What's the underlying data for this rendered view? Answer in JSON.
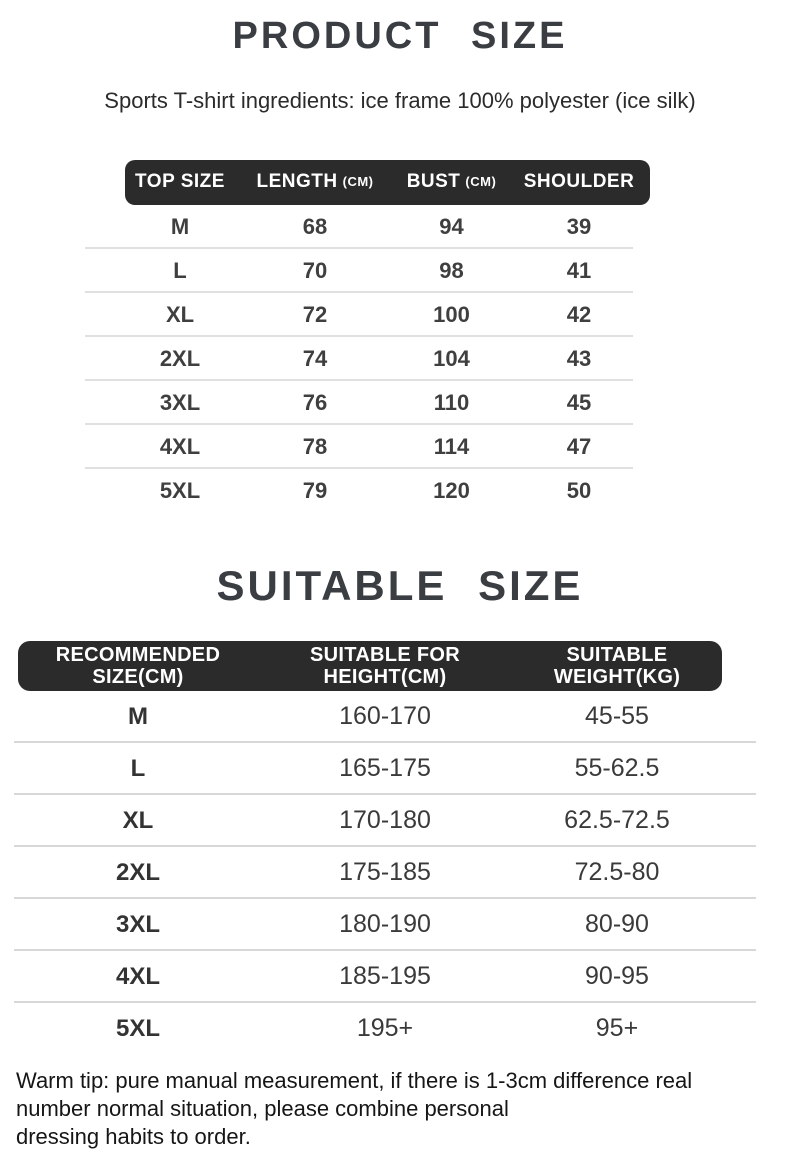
{
  "header": {
    "title": "PRODUCT SIZE",
    "subtitle": "Sports T-shirt ingredients: ice frame 100% polyester (ice silk)"
  },
  "product_size_table": {
    "columns": [
      {
        "label": "TOP SIZE",
        "unit": ""
      },
      {
        "label": "LENGTH",
        "unit": "(CM)"
      },
      {
        "label": "BUST",
        "unit": "(CM)"
      },
      {
        "label": "SHOULDER",
        "unit": ""
      }
    ],
    "rows": [
      [
        "M",
        "68",
        "94",
        "39"
      ],
      [
        "L",
        "70",
        "98",
        "41"
      ],
      [
        "XL",
        "72",
        "100",
        "42"
      ],
      [
        "2XL",
        "74",
        "104",
        "43"
      ],
      [
        "3XL",
        "76",
        "110",
        "45"
      ],
      [
        "4XL",
        "78",
        "114",
        "47"
      ],
      [
        "5XL",
        "79",
        "120",
        "50"
      ]
    ]
  },
  "suitable_size_table": {
    "title": "SUITABLE SIZE",
    "columns": [
      {
        "line1": "RECOMMENDED",
        "line2": "SIZE(CM)"
      },
      {
        "line1": "SUITABLE FOR",
        "line2": "HEIGHT(CM)"
      },
      {
        "line1": "SUITABLE",
        "line2": "WEIGHT(KG)"
      }
    ],
    "rows": [
      [
        "M",
        "160-170",
        "45-55"
      ],
      [
        "L",
        "165-175",
        "55-62.5"
      ],
      [
        "XL",
        "170-180",
        "62.5-72.5"
      ],
      [
        "2XL",
        "175-185",
        "72.5-80"
      ],
      [
        "3XL",
        "180-190",
        "80-90"
      ],
      [
        "4XL",
        "185-195",
        "90-95"
      ],
      [
        "5XL",
        "195+",
        "95+"
      ]
    ]
  },
  "footer": {
    "warm_tip": "Warm tip: pure manual measurement, if there is 1-3cm difference real\nnumber normal situation, please combine personal\ndressing habits to order."
  },
  "colors": {
    "header_bar": "#2b2b2b",
    "header_text": "#ffffff",
    "title_text": "#3a3d42",
    "body_text": "#3f3f3f",
    "divider": "#dcdcdc",
    "background": "#ffffff"
  }
}
